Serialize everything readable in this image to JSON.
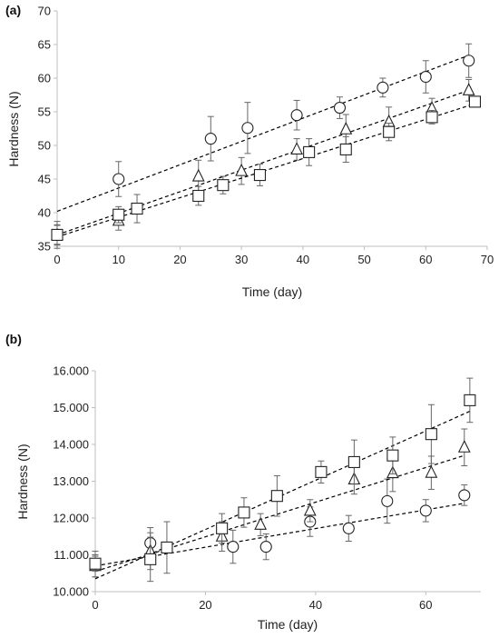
{
  "chart_data": [
    {
      "type": "scatter",
      "panel_label": "(a)",
      "xlabel": "Time (day)",
      "ylabel": "Hardness (N)",
      "xlim": [
        0,
        70
      ],
      "ylim": [
        35,
        70
      ],
      "x_ticks": [
        "0",
        "10",
        "20",
        "30",
        "40",
        "50",
        "60",
        "70"
      ],
      "y_ticks": [
        "35",
        "40",
        "45",
        "50",
        "55",
        "60",
        "65",
        "70"
      ],
      "grid": false,
      "trendlines": "dashed linear",
      "series": [
        {
          "marker": "circle",
          "x": [
            0,
            10,
            25,
            31,
            39,
            46,
            53,
            60,
            67
          ],
          "y": [
            36.7,
            45.0,
            51.0,
            52.6,
            54.5,
            55.6,
            58.6,
            60.2,
            62.6
          ],
          "err": [
            2.0,
            2.6,
            3.3,
            3.8,
            2.2,
            1.6,
            1.4,
            2.4,
            2.5
          ],
          "fit": [
            [
              0,
              40.2
            ],
            [
              67,
              63.4
            ]
          ]
        },
        {
          "marker": "triangle",
          "x": [
            0,
            10,
            23,
            30,
            39,
            47,
            54,
            61,
            67
          ],
          "y": [
            36.7,
            38.8,
            45.4,
            46.2,
            49.4,
            52.4,
            53.5,
            55.5,
            58.2
          ],
          "err": [
            1.5,
            1.4,
            2.4,
            2.0,
            1.6,
            2.2,
            2.2,
            1.5,
            1.6
          ],
          "fit": [
            [
              0,
              36.7
            ],
            [
              67,
              58.2
            ]
          ]
        },
        {
          "marker": "square",
          "x": [
            0,
            10,
            13,
            23,
            27,
            33,
            41,
            47,
            54,
            61,
            68
          ],
          "y": [
            36.7,
            39.7,
            40.6,
            42.5,
            44.1,
            45.6,
            49.0,
            49.4,
            52.0,
            54.2,
            56.5
          ],
          "err": [
            1.4,
            1.2,
            2.1,
            1.4,
            1.3,
            1.6,
            2.0,
            1.9,
            1.3,
            1.0,
            0.8
          ],
          "fit": [
            [
              0,
              36.4
            ],
            [
              68,
              56.2
            ]
          ]
        }
      ]
    },
    {
      "type": "scatter",
      "panel_label": "(b)",
      "xlabel": "Time (day)",
      "ylabel": "Hardness (N)",
      "xlim": [
        0,
        70
      ],
      "ylim": [
        10000,
        16000
      ],
      "x_ticks": [
        "0",
        "20",
        "40",
        "60"
      ],
      "x_tick_values": [
        0,
        20,
        40,
        60
      ],
      "y_ticks": [
        "10.000",
        "11.000",
        "12.000",
        "13.000",
        "14.000",
        "15.000",
        "16.000"
      ],
      "grid": false,
      "trendlines": "dotted linear",
      "series": [
        {
          "marker": "circle",
          "x": [
            0,
            10,
            25,
            31,
            39,
            46,
            53,
            60,
            67
          ],
          "y": [
            10750,
            11320,
            11220,
            11220,
            11900,
            11720,
            12460,
            12200,
            12620
          ],
          "err": [
            350,
            420,
            450,
            350,
            400,
            350,
            600,
            300,
            280
          ],
          "fit": [
            [
              0,
              10700
            ],
            [
              67,
              12400
            ]
          ]
        },
        {
          "marker": "triangle",
          "x": [
            0,
            10,
            23,
            30,
            39,
            47,
            54,
            61,
            67
          ],
          "y": [
            10700,
            11100,
            11500,
            11820,
            12200,
            13050,
            13220,
            13230,
            13920
          ],
          "err": [
            300,
            500,
            400,
            300,
            300,
            400,
            500,
            450,
            500
          ],
          "fit": [
            [
              0,
              10550
            ],
            [
              67,
              13700
            ]
          ]
        },
        {
          "marker": "square",
          "x": [
            0,
            10,
            13,
            23,
            27,
            33,
            41,
            47,
            54,
            61,
            68
          ],
          "y": [
            10760,
            10880,
            11200,
            11720,
            12150,
            12600,
            13250,
            13520,
            13700,
            14280,
            15200
          ],
          "err": [
            200,
            600,
            700,
            400,
            400,
            550,
            300,
            600,
            500,
            800,
            600
          ],
          "fit": [
            [
              0,
              10350
            ],
            [
              68,
              14900
            ]
          ]
        }
      ]
    }
  ]
}
